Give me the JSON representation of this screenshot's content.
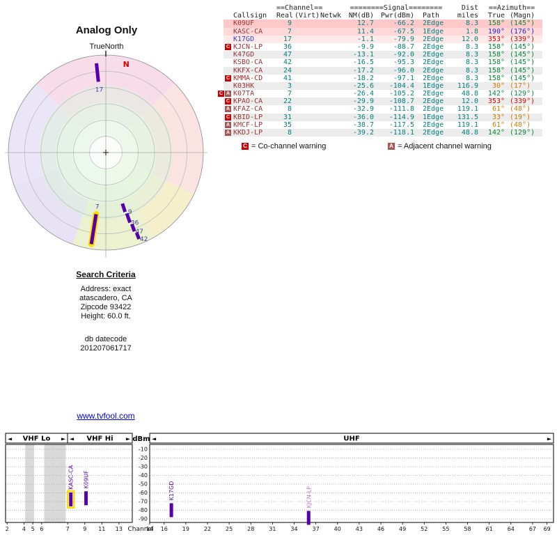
{
  "palette": {
    "value_teal": "#008080",
    "az_green": "#008833",
    "az_blue": "#2222cc",
    "az_red": "#dd0000",
    "az_orange": "#cc7a00",
    "callsign_maroon": "#993333",
    "callsign_blue": "#3344bb",
    "flag_c_bg": "#cc0000",
    "flag_a_bg": "#aa5555",
    "bar_purple": "#5500aa",
    "bar_label_light": "#bb77cc",
    "marker_label": "#3f3f9f",
    "highlight_yellow": "#ffdd00",
    "link_blue": "#0000cc",
    "row_pink_1": "#ffc9c9",
    "row_pink_2": "#ffd9d9",
    "row_pink_3": "#ffeaea",
    "row_gray": "#ececec",
    "row_white": "#ffffff"
  },
  "table": {
    "group_headers": {
      "channel": "==Channel==",
      "signal": "========Signal========",
      "dist": "Dist",
      "azimuth": "==Azimuth=="
    },
    "columns": [
      "Callsign",
      "Real",
      "(Virt)",
      "Netwk",
      "NM(dB)",
      "Pwr(dBm)",
      "Path",
      "miles",
      "True",
      "(Magn)"
    ],
    "rows": [
      {
        "flags": "",
        "callsign": "K09UF",
        "real": "9",
        "virt": "",
        "netwk": "",
        "nm": "12.7",
        "pwr": "-66.2",
        "path": "2Edge",
        "miles": "8.3",
        "true": "158°",
        "magn": "(145°)",
        "bg": "row_pink_1",
        "az": "az_green",
        "cs": "callsign_maroon"
      },
      {
        "flags": "",
        "callsign": "KASC-CA",
        "real": "7",
        "virt": "",
        "netwk": "",
        "nm": "11.4",
        "pwr": "-67.5",
        "path": "1Edge",
        "miles": "1.8",
        "true": "190°",
        "magn": "(176°)",
        "bg": "row_pink_2",
        "az": "az_blue",
        "cs": "callsign_maroon"
      },
      {
        "flags": "",
        "callsign": "K17GD",
        "real": "17",
        "virt": "",
        "netwk": "",
        "nm": "-1.1",
        "pwr": "-79.9",
        "path": "2Edge",
        "miles": "12.0",
        "true": "353°",
        "magn": "(339°)",
        "bg": "row_pink_3",
        "az": "az_red",
        "cs": "callsign_blue"
      },
      {
        "flags": "C",
        "callsign": "KJCN-LP",
        "real": "36",
        "virt": "",
        "netwk": "",
        "nm": "-9.9",
        "pwr": "-88.7",
        "path": "2Edge",
        "miles": "8.3",
        "true": "158°",
        "magn": "(145°)",
        "bg": "row_white",
        "az": "az_green",
        "cs": "callsign_maroon"
      },
      {
        "flags": "",
        "callsign": "K47GD",
        "real": "47",
        "virt": "",
        "netwk": "",
        "nm": "-13.1",
        "pwr": "-92.0",
        "path": "2Edge",
        "miles": "8.3",
        "true": "158°",
        "magn": "(145°)",
        "bg": "row_gray",
        "az": "az_green",
        "cs": "callsign_maroon"
      },
      {
        "flags": "",
        "callsign": "KSBO-CA",
        "real": "42",
        "virt": "",
        "netwk": "",
        "nm": "-16.5",
        "pwr": "-95.3",
        "path": "2Edge",
        "miles": "8.3",
        "true": "158°",
        "magn": "(145°)",
        "bg": "row_white",
        "az": "az_green",
        "cs": "callsign_maroon"
      },
      {
        "flags": "",
        "callsign": "KKFX-CA",
        "real": "24",
        "virt": "",
        "netwk": "",
        "nm": "-17.2",
        "pwr": "-96.0",
        "path": "2Edge",
        "miles": "8.3",
        "true": "158°",
        "magn": "(145°)",
        "bg": "row_gray",
        "az": "az_green",
        "cs": "callsign_maroon"
      },
      {
        "flags": "C",
        "callsign": "KMMA-CD",
        "real": "41",
        "virt": "",
        "netwk": "",
        "nm": "-18.2",
        "pwr": "-97.1",
        "path": "2Edge",
        "miles": "8.3",
        "true": "158°",
        "magn": "(145°)",
        "bg": "row_white",
        "az": "az_green",
        "cs": "callsign_maroon"
      },
      {
        "flags": "",
        "callsign": "K03HK",
        "real": "3",
        "virt": "",
        "netwk": "",
        "nm": "-25.6",
        "pwr": "-104.4",
        "path": "1Edge",
        "miles": "116.9",
        "true": "30°",
        "magn": "(17°)",
        "bg": "row_gray",
        "az": "az_orange",
        "cs": "callsign_maroon"
      },
      {
        "flags": "CA",
        "callsign": "K07TA",
        "real": "7",
        "virt": "",
        "netwk": "",
        "nm": "-26.4",
        "pwr": "-105.2",
        "path": "2Edge",
        "miles": "48.8",
        "true": "142°",
        "magn": "(129°)",
        "bg": "row_white",
        "az": "az_green",
        "cs": "callsign_maroon"
      },
      {
        "flags": "C",
        "callsign": "KPAO-CA",
        "real": "22",
        "virt": "",
        "netwk": "",
        "nm": "-29.9",
        "pwr": "-108.7",
        "path": "2Edge",
        "miles": "12.0",
        "true": "353°",
        "magn": "(339°)",
        "bg": "row_gray",
        "az": "az_red",
        "cs": "callsign_maroon"
      },
      {
        "flags": "A",
        "callsign": "KFAZ-CA",
        "real": "8",
        "virt": "",
        "netwk": "",
        "nm": "-32.9",
        "pwr": "-111.8",
        "path": "2Edge",
        "miles": "119.1",
        "true": "61°",
        "magn": "(48°)",
        "bg": "row_white",
        "az": "az_orange",
        "cs": "callsign_maroon"
      },
      {
        "flags": "C",
        "callsign": "KBID-LP",
        "real": "31",
        "virt": "",
        "netwk": "",
        "nm": "-36.0",
        "pwr": "-114.9",
        "path": "1Edge",
        "miles": "131.5",
        "true": "33°",
        "magn": "(19°)",
        "bg": "row_gray",
        "az": "az_orange",
        "cs": "callsign_maroon"
      },
      {
        "flags": "A",
        "callsign": "KMCF-LP",
        "real": "35",
        "virt": "",
        "netwk": "",
        "nm": "-38.7",
        "pwr": "-117.5",
        "path": "2Edge",
        "miles": "119.1",
        "true": "61°",
        "magn": "(48°)",
        "bg": "row_white",
        "az": "az_orange",
        "cs": "callsign_maroon"
      },
      {
        "flags": "A",
        "callsign": "KKDJ-LP",
        "real": "8",
        "virt": "",
        "netwk": "",
        "nm": "-39.2",
        "pwr": "-118.1",
        "path": "2Edge",
        "miles": "48.8",
        "true": "142°",
        "magn": "(129°)",
        "bg": "row_gray",
        "az": "az_green",
        "cs": "callsign_maroon"
      }
    ],
    "legend": [
      {
        "flag": "C",
        "text": "= Co-channel warning"
      },
      {
        "flag": "A",
        "text": "= Adjacent channel warning"
      }
    ]
  },
  "criteria": {
    "title": "Search Criteria",
    "lines": [
      "Address: exact",
      "atascadero, CA",
      "Zipcode 93422",
      "Height: 60.0 ft."
    ],
    "footer_lines": [
      "db datecode",
      "201207061717"
    ]
  },
  "link": "www.tvfool.com",
  "chart_data": [
    {
      "type": "bar",
      "subtype": "signal-spectrum",
      "ylabel": "dBm",
      "xlabel": "Channel",
      "ylim": [
        -95,
        -5
      ],
      "y_ticks": [
        -10,
        -20,
        -30,
        -40,
        -50,
        -60,
        -70,
        -80,
        -90
      ],
      "band_headers": [
        "VHF Lo",
        "VHF Hi",
        "UHF"
      ],
      "vhf_ticks": [
        {
          "ch": "2",
          "f": 0.012
        },
        {
          "ch": "4",
          "f": 0.145
        },
        {
          "ch": "5",
          "f": 0.215
        },
        {
          "ch": "6",
          "f": 0.285
        },
        {
          "ch": "7",
          "f": 0.49
        },
        {
          "ch": "9",
          "f": 0.625
        },
        {
          "ch": "11",
          "f": 0.76
        },
        {
          "ch": "13",
          "f": 0.895
        }
      ],
      "vhf_gap_bands": [
        [
          0.155,
          0.225
        ],
        [
          0.305,
          0.475
        ]
      ],
      "uhf_channel_range": [
        14,
        69
      ],
      "uhf_ticks": [
        14,
        16,
        19,
        22,
        25,
        28,
        31,
        34,
        37,
        40,
        43,
        46,
        49,
        52,
        55,
        58,
        61,
        64,
        67,
        69
      ],
      "grid": true,
      "legend_position": "none",
      "stations": [
        {
          "callsign": "KASC-CA",
          "band": "vhf",
          "channel": 7,
          "f": 0.515,
          "dbm": -67.5,
          "highlight": true,
          "label_light": false
        },
        {
          "callsign": "K09UF",
          "band": "vhf",
          "channel": 9,
          "f": 0.635,
          "dbm": -66.2,
          "highlight": false,
          "label_light": false
        },
        {
          "callsign": "K17GD",
          "band": "uhf",
          "channel": 17,
          "dbm": -79.9,
          "highlight": false,
          "label_light": false
        },
        {
          "callsign": "KJCN-LP",
          "band": "uhf",
          "channel": 36,
          "dbm": -88.7,
          "highlight": false,
          "label_light": true
        }
      ]
    },
    {
      "type": "polar",
      "subtype": "azimuth-radar",
      "title": "Analog Only",
      "north_label": "TrueNorth",
      "magnetic_north": {
        "label": "N",
        "azimuth": 13
      },
      "rings": 6,
      "markers": [
        {
          "channel": "17",
          "azimuth": 354,
          "r0": 0.73,
          "r1": 0.92,
          "label_at": "inner",
          "highlight": false
        },
        {
          "channel": "7",
          "azimuth": 189,
          "r0": 0.64,
          "r1": 0.95,
          "label_at": "inner",
          "highlight": true
        },
        {
          "channel": "9",
          "azimuth": 162,
          "r0": 0.55,
          "r1": 0.64,
          "label_at": "outer",
          "highlight": false
        },
        {
          "channel": "36",
          "azimuth": 161,
          "r0": 0.66,
          "r1": 0.76,
          "label_at": "outer",
          "highlight": false
        },
        {
          "channel": "47",
          "azimuth": 160,
          "r0": 0.78,
          "r1": 0.86,
          "label_at": "outer",
          "highlight": false
        },
        {
          "channel": "42",
          "azimuth": 159,
          "r0": 0.88,
          "r1": 0.95,
          "label_at": "outer",
          "highlight": false
        }
      ]
    }
  ]
}
